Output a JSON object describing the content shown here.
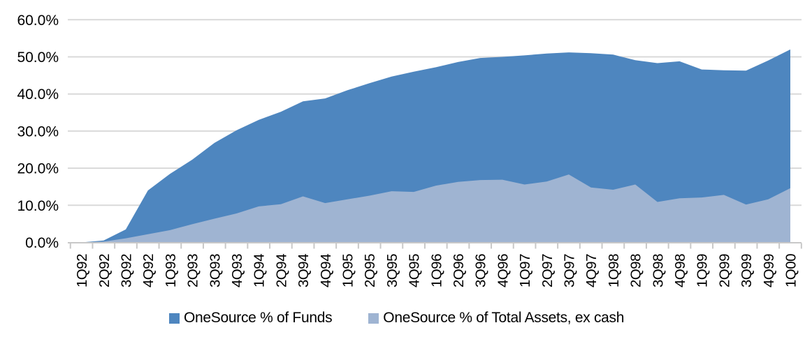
{
  "chart_data": {
    "type": "area",
    "stacked": false,
    "title": "",
    "xlabel": "",
    "ylabel": "",
    "categories": [
      "1Q92",
      "2Q92",
      "3Q92",
      "4Q92",
      "1Q93",
      "2Q93",
      "3Q93",
      "4Q93",
      "1Q94",
      "2Q94",
      "3Q94",
      "4Q94",
      "1Q95",
      "2Q95",
      "3Q95",
      "4Q95",
      "1Q96",
      "2Q96",
      "3Q96",
      "4Q96",
      "1Q97",
      "2Q97",
      "3Q97",
      "4Q97",
      "1Q98",
      "2Q98",
      "3Q98",
      "4Q98",
      "1Q99",
      "2Q99",
      "3Q99",
      "4Q99",
      "1Q00"
    ],
    "series": [
      {
        "name": "OneSource % of Funds",
        "color": "#4e86bf",
        "values": [
          0.0,
          0.5,
          3.5,
          14.0,
          18.5,
          22.3,
          26.8,
          30.2,
          33.0,
          35.2,
          38.0,
          38.8,
          41.0,
          42.9,
          44.7,
          46.0,
          47.2,
          48.6,
          49.7,
          50.0,
          50.4,
          50.9,
          51.2,
          51.0,
          50.6,
          49.1,
          48.3,
          48.8,
          46.6,
          46.4,
          46.3,
          49.0,
          52.0
        ]
      },
      {
        "name": "OneSource % of Total Assets, ex cash",
        "color": "#9fb4d2",
        "values": [
          0.0,
          0.2,
          1.1,
          2.2,
          3.3,
          4.9,
          6.4,
          7.8,
          9.7,
          10.3,
          12.4,
          10.6,
          11.6,
          12.6,
          13.8,
          13.6,
          15.3,
          16.3,
          16.8,
          16.9,
          15.6,
          16.4,
          18.3,
          14.8,
          14.2,
          15.6,
          10.9,
          11.9,
          12.1,
          12.8,
          10.2,
          11.6,
          14.6
        ]
      }
    ],
    "ylim": [
      0,
      60
    ],
    "ytick_step": 10,
    "ytick_labels": [
      "0.0%",
      "10.0%",
      "20.0%",
      "30.0%",
      "40.0%",
      "50.0%",
      "60.0%"
    ],
    "grid": "horizontal",
    "legend_position": "bottom",
    "colors": {
      "gridline": "#d9d9d9",
      "axis": "#c8c8c8",
      "text": "#000000",
      "background": "#ffffff"
    }
  }
}
